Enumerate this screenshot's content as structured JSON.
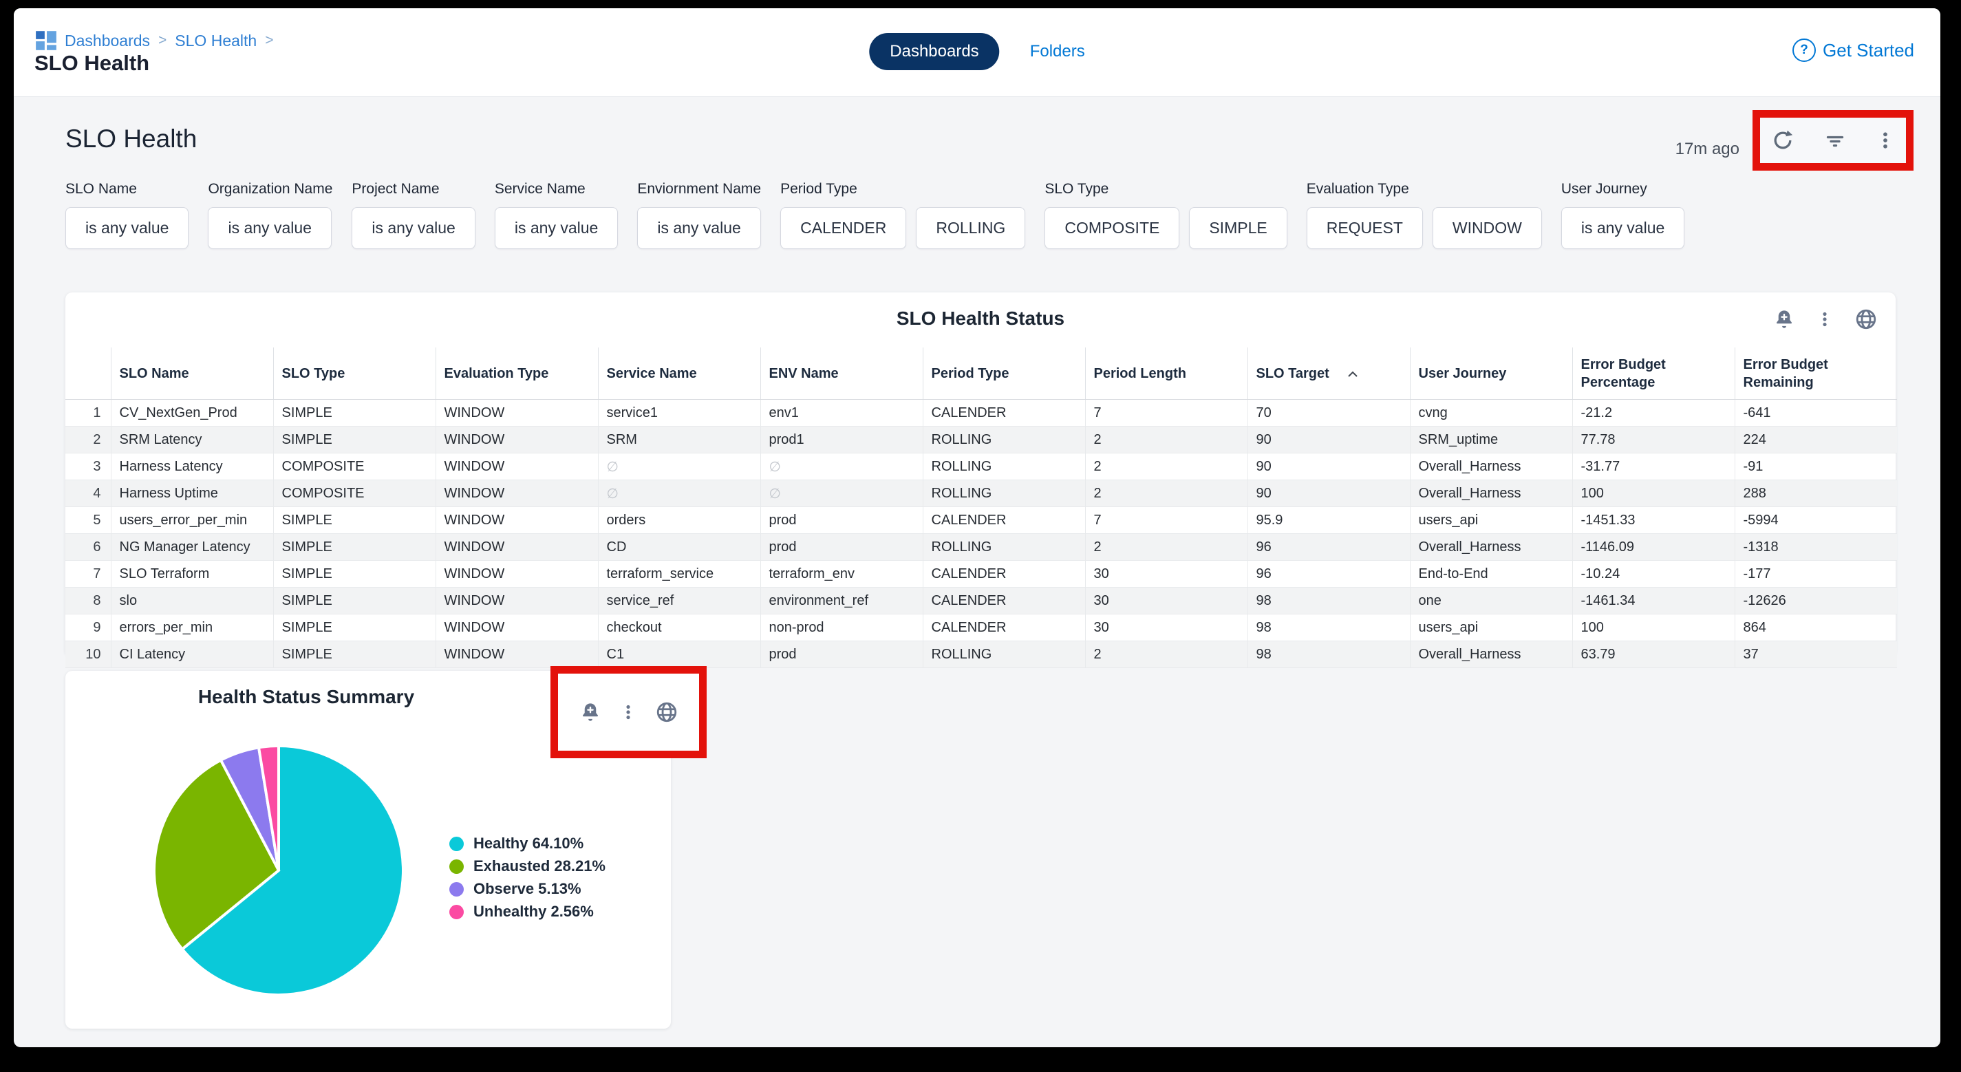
{
  "topbar": {
    "breadcrumb": {
      "items": [
        "Dashboards",
        "SLO Health"
      ],
      "separator": ">"
    },
    "page_title": "SLO Health",
    "tabs": [
      {
        "label": "Dashboards",
        "active": true
      },
      {
        "label": "Folders",
        "active": false
      }
    ],
    "get_started": "Get Started",
    "question_glyph": "?"
  },
  "dashboard": {
    "title": "SLO Health",
    "last_refresh": "17m ago"
  },
  "filters": [
    {
      "label": "SLO Name",
      "buttons": [
        "is any value"
      ]
    },
    {
      "label": "Organization Name",
      "buttons": [
        "is any value"
      ]
    },
    {
      "label": "Project Name",
      "buttons": [
        "is any value"
      ]
    },
    {
      "label": "Service Name",
      "buttons": [
        "is any value"
      ]
    },
    {
      "label": "Enviornment Name",
      "buttons": [
        "is any value"
      ]
    },
    {
      "label": "Period Type",
      "buttons": [
        "CALENDER",
        "ROLLING"
      ]
    },
    {
      "label": "SLO Type",
      "buttons": [
        "COMPOSITE",
        "SIMPLE"
      ]
    },
    {
      "label": "Evaluation Type",
      "buttons": [
        "REQUEST",
        "WINDOW"
      ]
    },
    {
      "label": "User Journey",
      "buttons": [
        "is any value"
      ]
    }
  ],
  "table": {
    "title": "SLO Health Status",
    "columns": [
      "SLO Name",
      "SLO Type",
      "Evaluation Type",
      "Service Name",
      "ENV Name",
      "Period Type",
      "Period Length",
      "SLO Target",
      "User Journey",
      "Error Budget\nPercentage",
      "Error Budget\nRemaining"
    ],
    "sorted_column": "SLO Target",
    "null_glyph": "∅",
    "rows": [
      [
        "1",
        "CV_NextGen_Prod",
        "SIMPLE",
        "WINDOW",
        "service1",
        "env1",
        "CALENDER",
        "7",
        "70",
        "cvng",
        "-21.2",
        "-641"
      ],
      [
        "2",
        "SRM Latency",
        "SIMPLE",
        "WINDOW",
        "SRM",
        "prod1",
        "ROLLING",
        "2",
        "90",
        "SRM_uptime",
        "77.78",
        "224"
      ],
      [
        "3",
        "Harness Latency",
        "COMPOSITE",
        "WINDOW",
        "∅",
        "∅",
        "ROLLING",
        "2",
        "90",
        "Overall_Harness",
        "-31.77",
        "-91"
      ],
      [
        "4",
        "Harness Uptime",
        "COMPOSITE",
        "WINDOW",
        "∅",
        "∅",
        "ROLLING",
        "2",
        "90",
        "Overall_Harness",
        "100",
        "288"
      ],
      [
        "5",
        "users_error_per_min",
        "SIMPLE",
        "WINDOW",
        "orders",
        "prod",
        "CALENDER",
        "7",
        "95.9",
        "users_api",
        "-1451.33",
        "-5994"
      ],
      [
        "6",
        "NG Manager Latency",
        "SIMPLE",
        "WINDOW",
        "CD",
        "prod",
        "ROLLING",
        "2",
        "96",
        "Overall_Harness",
        "-1146.09",
        "-1318"
      ],
      [
        "7",
        "SLO Terraform",
        "SIMPLE",
        "WINDOW",
        "terraform_service",
        "terraform_env",
        "CALENDER",
        "30",
        "96",
        "End-to-End",
        "-10.24",
        "-177"
      ],
      [
        "8",
        "slo",
        "SIMPLE",
        "WINDOW",
        "service_ref",
        "environment_ref",
        "CALENDER",
        "30",
        "98",
        "one",
        "-1461.34",
        "-12626"
      ],
      [
        "9",
        "errors_per_min",
        "SIMPLE",
        "WINDOW",
        "checkout",
        "non-prod",
        "CALENDER",
        "30",
        "98",
        "users_api",
        "100",
        "864"
      ],
      [
        "10",
        "CI Latency",
        "SIMPLE",
        "WINDOW",
        "C1",
        "prod",
        "ROLLING",
        "2",
        "98",
        "Overall_Harness",
        "63.79",
        "37"
      ]
    ]
  },
  "pie_card": {
    "title": "Health Status Summary"
  },
  "chart_data": {
    "type": "pie",
    "title": "Health Status Summary",
    "labels": [
      "Healthy",
      "Exhausted",
      "Observe",
      "Unhealthy"
    ],
    "values": [
      64.1,
      28.21,
      5.13,
      2.56
    ],
    "value_labels": [
      "Healthy 64.10%",
      "Exhausted 28.21%",
      "Observe 5.13%",
      "Unhealthy 2.56%"
    ],
    "colors": [
      "#0ac9d9",
      "#7ab500",
      "#8c7aee",
      "#fb4aa2"
    ],
    "start_angle_deg": 0,
    "direction": "clockwise",
    "legend_position": "right"
  },
  "annotation": {
    "color": "#e3120b"
  }
}
